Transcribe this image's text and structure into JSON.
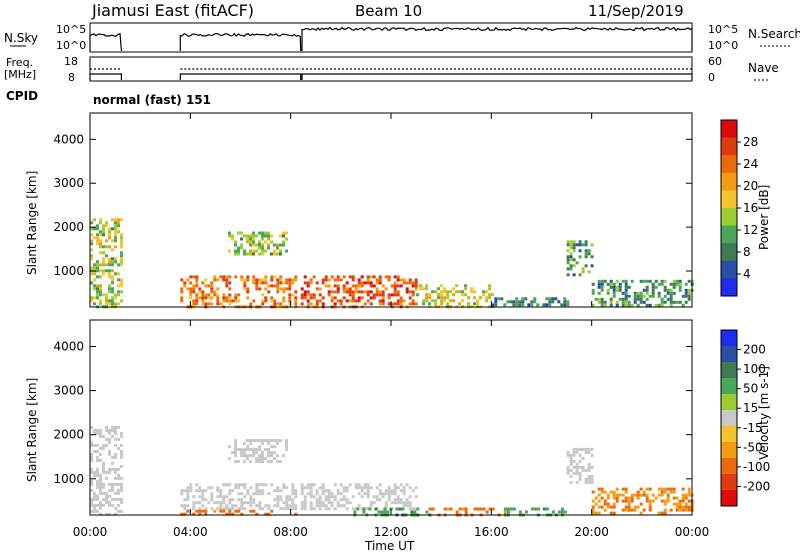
{
  "header": {
    "title": "Jiamusi East (fitACF)",
    "beam": "Beam 10",
    "date": "11/Sep/2019"
  },
  "strips": {
    "nsky_label": "N.Sky",
    "nsky_ticks": [
      "10^5",
      "10^0"
    ],
    "nsearch_label": "N.Search",
    "nsearch_ticks": [
      "10^5",
      "10^0"
    ],
    "freq_label": "Freq.",
    "freq_unit": "[MHz]",
    "freq_ticks": [
      "18",
      "8"
    ],
    "nave_label": "Nave",
    "nave_ticks": [
      "60",
      "0"
    ],
    "cpid_label": "CPID",
    "cpid_value": "normal (fast) 151"
  },
  "chart_data": [
    {
      "type": "heatmap",
      "name": "power",
      "ylabel": "Slant Range [km]",
      "xlabel": "",
      "x_ticks": [
        "00:00",
        "04:00",
        "08:00",
        "12:00",
        "16:00",
        "20:00",
        "00:00"
      ],
      "y_ticks": [
        "1000",
        "2000",
        "3000",
        "4000"
      ],
      "xlim_hours": [
        0,
        24
      ],
      "ylim_km": [
        180,
        4600
      ],
      "colorbar": {
        "label": "Power [dB]",
        "ticks": [
          "4",
          "8",
          "12",
          "16",
          "20",
          "24",
          "28"
        ],
        "colors": [
          "#1e2df0",
          "#2b4fa5",
          "#3f7a55",
          "#4aa65a",
          "#9acd32",
          "#f4c430",
          "#f39c12",
          "#ec6a0e",
          "#e23a0f",
          "#dd0b0b"
        ]
      },
      "data_gaps_hours": [
        [
          1.25,
          3.6
        ]
      ],
      "echo_regions": [
        {
          "t": [
            0.0,
            1.2
          ],
          "range_km": [
            200,
            2200
          ],
          "level_db": 14
        },
        {
          "t": [
            3.6,
            8.2
          ],
          "range_km": [
            200,
            900
          ],
          "level_db": 22
        },
        {
          "t": [
            5.5,
            7.8
          ],
          "range_km": [
            1400,
            1900
          ],
          "level_db": 14
        },
        {
          "t": [
            8.4,
            13.0
          ],
          "range_km": [
            200,
            900
          ],
          "level_db": 24
        },
        {
          "t": [
            13.0,
            16.0
          ],
          "range_km": [
            200,
            700
          ],
          "level_db": 16
        },
        {
          "t": [
            16.0,
            19.0
          ],
          "range_km": [
            200,
            400
          ],
          "level_db": 8
        },
        {
          "t": [
            19.0,
            20.0
          ],
          "range_km": [
            900,
            1700
          ],
          "level_db": 10
        },
        {
          "t": [
            20.0,
            24.0
          ],
          "range_km": [
            200,
            800
          ],
          "level_db": 10
        }
      ]
    },
    {
      "type": "heatmap",
      "name": "velocity",
      "ylabel": "Slant Range [km]",
      "xlabel": "Time UT",
      "x_ticks": [
        "00:00",
        "04:00",
        "08:00",
        "12:00",
        "16:00",
        "20:00",
        "00:00"
      ],
      "y_ticks": [
        "1000",
        "2000",
        "3000",
        "4000"
      ],
      "xlim_hours": [
        0,
        24
      ],
      "ylim_km": [
        180,
        4600
      ],
      "colorbar": {
        "label": "Velocity [m s-1]",
        "ticks": [
          "200",
          "100",
          "50",
          "15",
          "-15",
          "-50",
          "-100",
          "-200"
        ],
        "colors": [
          "#1e2df0",
          "#2b4fa5",
          "#3f7a55",
          "#4aa65a",
          "#9acd32",
          "#c8c8c8",
          "#f4c430",
          "#f39c12",
          "#ec6a0e",
          "#e23a0f",
          "#dd0b0b"
        ]
      },
      "data_gaps_hours": [
        [
          1.25,
          3.6
        ]
      ],
      "echo_regions": [
        {
          "t": [
            0.0,
            1.2
          ],
          "range_km": [
            200,
            2200
          ],
          "velocity_ms": 0
        },
        {
          "t": [
            3.6,
            8.2
          ],
          "range_km": [
            300,
            900
          ],
          "velocity_ms": 0
        },
        {
          "t": [
            3.6,
            8.2
          ],
          "range_km": [
            200,
            300
          ],
          "velocity_ms": -60
        },
        {
          "t": [
            5.5,
            7.8
          ],
          "range_km": [
            1400,
            1900
          ],
          "velocity_ms": 0
        },
        {
          "t": [
            8.4,
            13.0
          ],
          "range_km": [
            300,
            900
          ],
          "velocity_ms": 0
        },
        {
          "t": [
            10.5,
            13.5
          ],
          "range_km": [
            200,
            350
          ],
          "velocity_ms": 40
        },
        {
          "t": [
            13.5,
            16.5
          ],
          "range_km": [
            200,
            350
          ],
          "velocity_ms": -60
        },
        {
          "t": [
            16.5,
            19.0
          ],
          "range_km": [
            200,
            350
          ],
          "velocity_ms": 40
        },
        {
          "t": [
            19.0,
            20.0
          ],
          "range_km": [
            900,
            1700
          ],
          "velocity_ms": 0
        },
        {
          "t": [
            20.0,
            24.0
          ],
          "range_km": [
            200,
            800
          ],
          "velocity_ms": -50
        }
      ]
    }
  ]
}
